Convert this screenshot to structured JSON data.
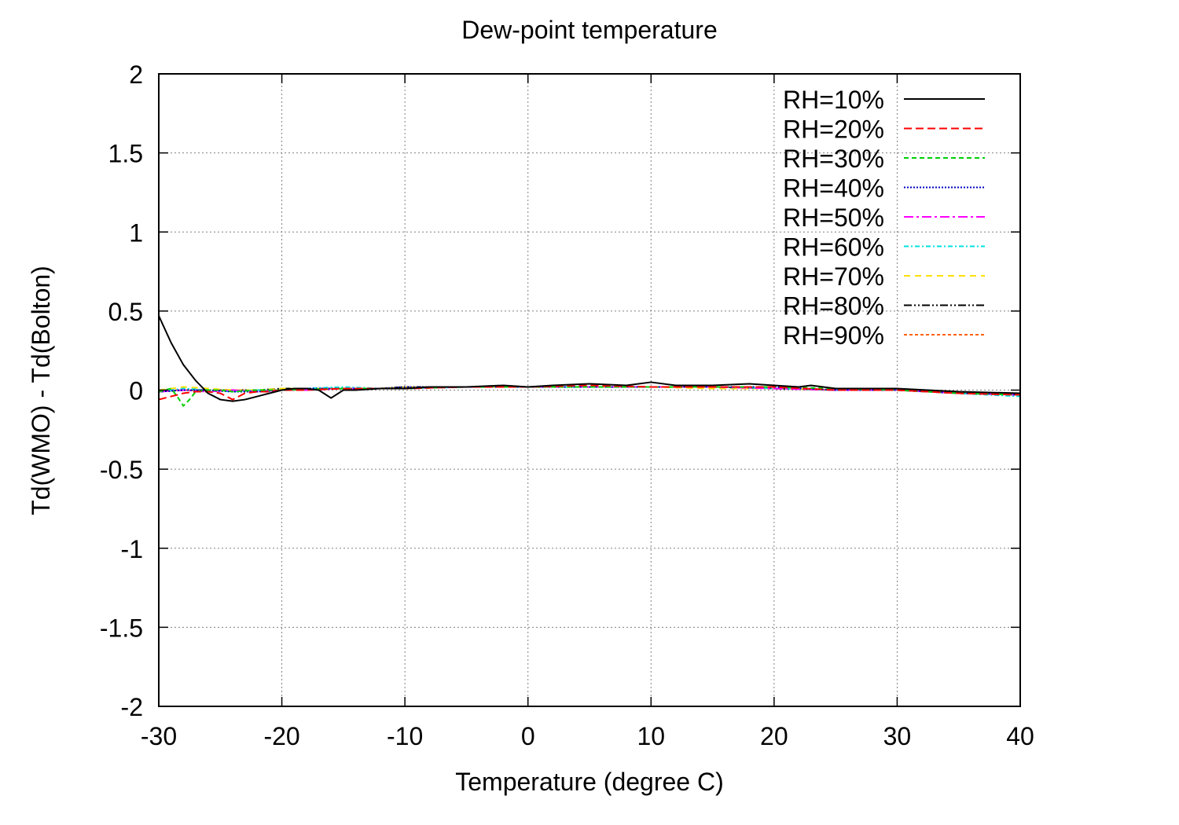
{
  "chart_data": {
    "type": "line",
    "title": "Dew-point temperature",
    "xlabel": "Temperature (degree C)",
    "ylabel": "Td(WMO) - Td(Bolton)",
    "xlim": [
      -30,
      40
    ],
    "ylim": [
      -2,
      2
    ],
    "xticks": [
      -30,
      -20,
      -10,
      0,
      10,
      20,
      30,
      40
    ],
    "xtick_labels": [
      "-30",
      "-20",
      "-10",
      "0",
      "10",
      "20",
      "30",
      "40"
    ],
    "yticks": [
      -2,
      -1.5,
      -1,
      -0.5,
      0,
      0.5,
      1,
      1.5,
      2
    ],
    "ytick_labels": [
      "-2",
      "-1.5",
      "-1",
      "-0.5",
      "0",
      "0.5",
      "1",
      "1.5",
      "2"
    ],
    "grid": true,
    "legend_position": "top-right",
    "series": [
      {
        "name": "RH=10%",
        "color": "#000000",
        "dash": "solid",
        "x": [
          -30,
          -29,
          -28,
          -27,
          -26,
          -25,
          -24,
          -23,
          -22,
          -21,
          -20,
          -19,
          -18,
          -17,
          -16,
          -15,
          -14,
          -12,
          -10,
          -8,
          -5,
          -2,
          0,
          2,
          5,
          8,
          10,
          12,
          15,
          18,
          20,
          22,
          23,
          25,
          30,
          35,
          40
        ],
        "y": [
          0.47,
          0.3,
          0.16,
          0.06,
          -0.02,
          -0.06,
          -0.07,
          -0.06,
          -0.04,
          -0.02,
          0.0,
          0.01,
          0.01,
          0.0,
          -0.05,
          0.0,
          0.0,
          0.01,
          0.01,
          0.02,
          0.02,
          0.03,
          0.02,
          0.03,
          0.04,
          0.03,
          0.05,
          0.03,
          0.03,
          0.04,
          0.03,
          0.02,
          0.03,
          0.01,
          0.01,
          -0.01,
          -0.02
        ]
      },
      {
        "name": "RH=20%",
        "color": "#ff0000",
        "dash": "10 5",
        "x": [
          -30,
          -29,
          -28,
          -27,
          -26,
          -25,
          -24,
          -23,
          -22,
          -21,
          -20,
          -18,
          -15,
          -10,
          -5,
          0,
          5,
          10,
          15,
          20,
          25,
          30,
          35,
          40
        ],
        "y": [
          -0.06,
          -0.04,
          -0.02,
          -0.01,
          -0.01,
          -0.02,
          -0.06,
          -0.02,
          -0.01,
          -0.01,
          0.0,
          0.0,
          0.01,
          0.01,
          0.02,
          0.02,
          0.03,
          0.02,
          0.02,
          0.02,
          0.0,
          0.0,
          -0.02,
          -0.03
        ]
      },
      {
        "name": "RH=30%",
        "color": "#00d000",
        "dash": "6 4",
        "x": [
          -30,
          -29,
          -28.5,
          -28,
          -27.5,
          -27,
          -26,
          -25,
          -24,
          -22,
          -20,
          -15,
          -10,
          -5,
          0,
          5,
          10,
          15,
          20,
          25,
          30,
          35,
          40
        ],
        "y": [
          -0.01,
          0.01,
          -0.04,
          -0.1,
          -0.06,
          -0.01,
          0.0,
          0.0,
          -0.01,
          0.0,
          0.0,
          0.01,
          0.01,
          0.02,
          0.02,
          0.02,
          0.02,
          0.02,
          0.02,
          0.01,
          0.0,
          -0.02,
          -0.03
        ]
      },
      {
        "name": "RH=40%",
        "color": "#0000c0",
        "dash": "2 2",
        "x": [
          -30,
          -28,
          -26,
          -24,
          -22,
          -20,
          -18,
          -15,
          -12,
          -10,
          -5,
          0,
          5,
          10,
          15,
          20,
          25,
          30,
          35,
          40
        ],
        "y": [
          -0.01,
          0.0,
          0.0,
          -0.01,
          -0.01,
          0.0,
          0.01,
          0.01,
          0.01,
          0.02,
          0.02,
          0.02,
          0.02,
          0.02,
          0.02,
          0.02,
          0.0,
          0.0,
          -0.02,
          -0.03
        ]
      },
      {
        "name": "RH=50%",
        "color": "#ff00ff",
        "dash": "12 4 3 4",
        "x": [
          -30,
          -28,
          -26,
          -24,
          -22,
          -20,
          -18,
          -15,
          -12,
          -10,
          -5,
          0,
          5,
          10,
          15,
          20,
          25,
          30,
          35,
          40
        ],
        "y": [
          -0.01,
          0.0,
          -0.01,
          0.0,
          -0.01,
          0.0,
          0.0,
          0.01,
          0.01,
          0.01,
          0.02,
          0.02,
          0.02,
          0.02,
          0.02,
          0.01,
          0.0,
          0.0,
          -0.02,
          -0.03
        ]
      },
      {
        "name": "RH=60%",
        "color": "#00e0e0",
        "dash": "6 3 2 3",
        "x": [
          -30,
          -28,
          -26,
          -24,
          -22,
          -20,
          -18,
          -15,
          -12,
          -10,
          -5,
          0,
          5,
          10,
          15,
          20,
          25,
          30,
          35,
          40
        ],
        "y": [
          -0.01,
          0.01,
          0.0,
          -0.01,
          0.0,
          0.0,
          0.01,
          0.02,
          0.01,
          0.01,
          0.02,
          0.02,
          0.02,
          0.02,
          0.02,
          0.01,
          0.0,
          0.0,
          -0.02,
          -0.04
        ]
      },
      {
        "name": "RH=70%",
        "color": "#ffe000",
        "dash": "8 6",
        "x": [
          -30,
          -28,
          -26,
          -24,
          -22,
          -20,
          -18,
          -15,
          -12,
          -10,
          -5,
          0,
          5,
          10,
          15,
          20,
          25,
          30,
          35,
          40
        ],
        "y": [
          0.0,
          0.02,
          0.01,
          0.0,
          0.0,
          0.01,
          0.01,
          0.01,
          0.01,
          0.02,
          0.02,
          0.02,
          0.02,
          0.02,
          0.01,
          0.01,
          0.0,
          0.0,
          -0.02,
          -0.03
        ]
      },
      {
        "name": "RH=80%",
        "color": "#000000",
        "dash": "10 3 2 3 2 3",
        "x": [
          -30,
          -28,
          -26,
          -24,
          -22,
          -20,
          -18,
          -15,
          -12,
          -10,
          -5,
          0,
          5,
          10,
          15,
          20,
          25,
          30,
          35,
          40
        ],
        "y": [
          -0.01,
          0.0,
          0.0,
          0.0,
          0.0,
          0.01,
          0.01,
          0.01,
          0.01,
          0.02,
          0.02,
          0.02,
          0.02,
          0.02,
          0.02,
          0.01,
          0.0,
          0.0,
          -0.02,
          -0.02
        ]
      },
      {
        "name": "RH=90%",
        "color": "#ff6000",
        "dash": "4 3",
        "x": [
          -30,
          -28,
          -26,
          -24,
          -22,
          -20,
          -18,
          -15,
          -12,
          -10,
          -5,
          0,
          5,
          10,
          15,
          20,
          25,
          30,
          35,
          40
        ],
        "y": [
          0.0,
          0.0,
          0.0,
          0.0,
          0.0,
          0.0,
          0.01,
          0.01,
          0.01,
          0.02,
          0.02,
          0.02,
          0.02,
          0.02,
          0.02,
          0.01,
          0.0,
          0.0,
          -0.02,
          -0.03
        ]
      }
    ]
  }
}
